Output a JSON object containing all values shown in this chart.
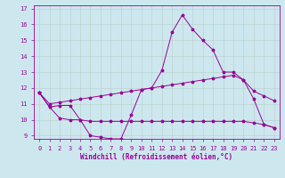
{
  "xlabel": "Windchill (Refroidissement éolien,°C)",
  "background_color": "#cce8ee",
  "line_color": "#990099",
  "grid_color": "#bbcccc",
  "xlim": [
    -0.5,
    23.5
  ],
  "ylim": [
    8.8,
    17.2
  ],
  "xticks": [
    0,
    1,
    2,
    3,
    4,
    5,
    6,
    7,
    8,
    9,
    10,
    11,
    12,
    13,
    14,
    15,
    16,
    17,
    18,
    19,
    20,
    21,
    22,
    23
  ],
  "yticks": [
    9,
    10,
    11,
    12,
    13,
    14,
    15,
    16,
    17
  ],
  "series1_x": [
    0,
    1,
    2,
    3,
    4,
    5,
    6,
    7,
    8,
    9,
    10,
    11,
    12,
    13,
    14,
    15,
    16,
    17,
    18,
    19,
    20,
    21,
    22,
    23
  ],
  "series1_y": [
    11.7,
    10.8,
    10.9,
    10.9,
    10.0,
    9.0,
    8.9,
    8.8,
    8.8,
    10.3,
    11.9,
    12.0,
    13.1,
    15.5,
    16.6,
    15.7,
    15.0,
    14.4,
    13.0,
    13.0,
    12.5,
    11.3,
    9.7,
    9.5
  ],
  "series2_x": [
    0,
    1,
    2,
    3,
    4,
    5,
    6,
    7,
    8,
    9,
    10,
    11,
    12,
    13,
    14,
    15,
    16,
    17,
    18,
    19,
    20,
    21,
    22,
    23
  ],
  "series2_y": [
    11.7,
    10.8,
    10.1,
    10.0,
    10.0,
    9.9,
    9.9,
    9.9,
    9.9,
    9.9,
    9.9,
    9.9,
    9.9,
    9.9,
    9.9,
    9.9,
    9.9,
    9.9,
    9.9,
    9.9,
    9.9,
    9.8,
    9.7,
    9.5
  ],
  "series3_x": [
    0,
    1,
    2,
    3,
    4,
    5,
    6,
    7,
    8,
    9,
    10,
    11,
    12,
    13,
    14,
    15,
    16,
    17,
    18,
    19,
    20,
    21,
    22,
    23
  ],
  "series3_y": [
    11.7,
    11.0,
    11.1,
    11.2,
    11.3,
    11.4,
    11.5,
    11.6,
    11.7,
    11.8,
    11.9,
    12.0,
    12.1,
    12.2,
    12.3,
    12.4,
    12.5,
    12.6,
    12.7,
    12.8,
    12.5,
    11.8,
    11.5,
    11.2
  ],
  "xlabel_fontsize": 5.5,
  "tick_fontsize": 5.0,
  "marker": "*",
  "markersize": 2.5,
  "linewidth": 0.7
}
